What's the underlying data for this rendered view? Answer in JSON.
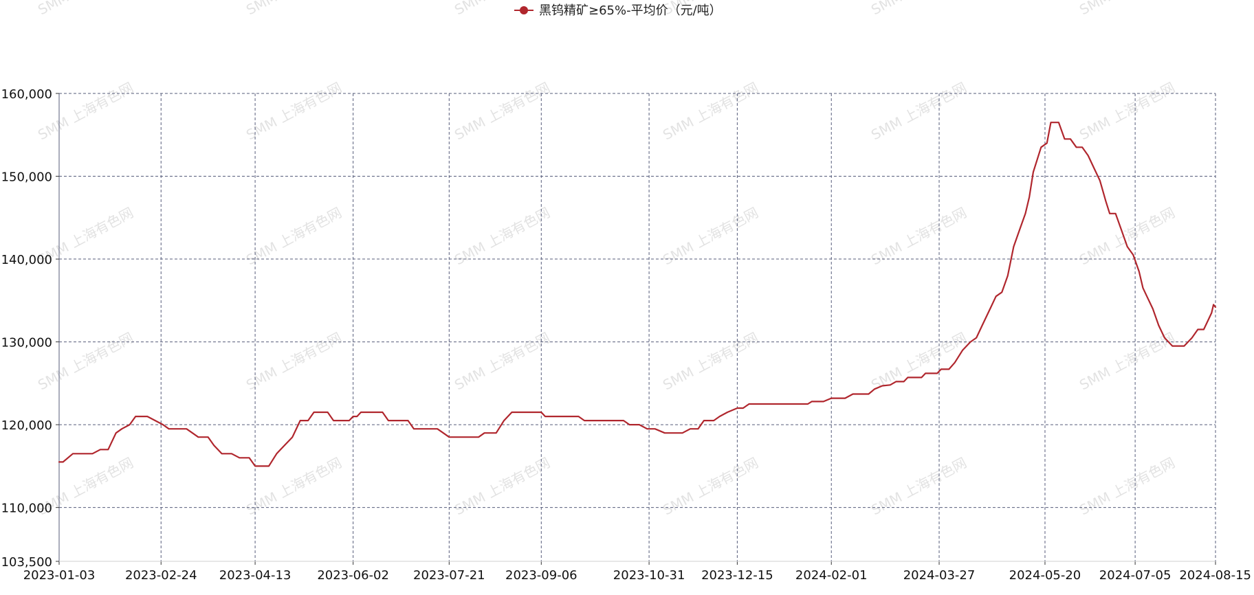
{
  "watermark": "SMM 上海有色网",
  "chart_data": {
    "type": "line",
    "legend": {
      "position": "top-center"
    },
    "series": [
      {
        "name": "黑钨精矿≥65%-平均价（元/吨）",
        "color": "#b0262d",
        "points": [
          [
            "2023-01-03",
            115500
          ],
          [
            "2023-01-05",
            115500
          ],
          [
            "2023-01-10",
            116500
          ],
          [
            "2023-01-20",
            116500
          ],
          [
            "2023-01-24",
            117000
          ],
          [
            "2023-01-28",
            117000
          ],
          [
            "2023-02-01",
            119000
          ],
          [
            "2023-02-04",
            119500
          ],
          [
            "2023-02-08",
            120000
          ],
          [
            "2023-02-11",
            121000
          ],
          [
            "2023-02-17",
            121000
          ],
          [
            "2023-02-21",
            120500
          ],
          [
            "2023-02-25",
            120000
          ],
          [
            "2023-02-28",
            119500
          ],
          [
            "2023-03-04",
            119500
          ],
          [
            "2023-03-09",
            119500
          ],
          [
            "2023-03-12",
            119000
          ],
          [
            "2023-03-15",
            118500
          ],
          [
            "2023-03-20",
            118500
          ],
          [
            "2023-03-23",
            117500
          ],
          [
            "2023-03-27",
            116500
          ],
          [
            "2023-04-01",
            116500
          ],
          [
            "2023-04-05",
            116000
          ],
          [
            "2023-04-10",
            116000
          ],
          [
            "2023-04-13",
            115000
          ],
          [
            "2023-04-20",
            115000
          ],
          [
            "2023-04-24",
            116500
          ],
          [
            "2023-04-28",
            117500
          ],
          [
            "2023-05-02",
            118500
          ],
          [
            "2023-05-06",
            120500
          ],
          [
            "2023-05-10",
            120500
          ],
          [
            "2023-05-13",
            121500
          ],
          [
            "2023-05-20",
            121500
          ],
          [
            "2023-05-23",
            120500
          ],
          [
            "2023-05-31",
            120500
          ],
          [
            "2023-06-02",
            121000
          ],
          [
            "2023-06-04",
            121000
          ],
          [
            "2023-06-06",
            121500
          ],
          [
            "2023-06-14",
            121500
          ],
          [
            "2023-06-17",
            121500
          ],
          [
            "2023-06-20",
            120500
          ],
          [
            "2023-06-30",
            120500
          ],
          [
            "2023-07-03",
            119500
          ],
          [
            "2023-07-15",
            119500
          ],
          [
            "2023-07-18",
            119000
          ],
          [
            "2023-07-21",
            118500
          ],
          [
            "2023-08-05",
            118500
          ],
          [
            "2023-08-08",
            119000
          ],
          [
            "2023-08-14",
            119000
          ],
          [
            "2023-08-18",
            120500
          ],
          [
            "2023-08-22",
            121500
          ],
          [
            "2023-09-06",
            121500
          ],
          [
            "2023-09-08",
            121000
          ],
          [
            "2023-09-25",
            121000
          ],
          [
            "2023-09-28",
            120500
          ],
          [
            "2023-10-18",
            120500
          ],
          [
            "2023-10-21",
            120000
          ],
          [
            "2023-10-26",
            120000
          ],
          [
            "2023-10-30",
            119500
          ],
          [
            "2023-11-03",
            119500
          ],
          [
            "2023-11-08",
            119000
          ],
          [
            "2023-11-17",
            119000
          ],
          [
            "2023-11-21",
            119500
          ],
          [
            "2023-11-25",
            119500
          ],
          [
            "2023-11-28",
            120500
          ],
          [
            "2023-12-03",
            120500
          ],
          [
            "2023-12-06",
            121000
          ],
          [
            "2023-12-10",
            121500
          ],
          [
            "2023-12-15",
            122000
          ],
          [
            "2023-12-18",
            122000
          ],
          [
            "2023-12-21",
            122500
          ],
          [
            "2024-01-15",
            122500
          ],
          [
            "2024-01-20",
            122500
          ],
          [
            "2024-01-22",
            122800
          ],
          [
            "2024-01-28",
            122800
          ],
          [
            "2024-02-01",
            123200
          ],
          [
            "2024-02-08",
            123200
          ],
          [
            "2024-02-12",
            123700
          ],
          [
            "2024-02-20",
            123700
          ],
          [
            "2024-02-23",
            124300
          ],
          [
            "2024-02-27",
            124700
          ],
          [
            "2024-03-02",
            124800
          ],
          [
            "2024-03-05",
            125200
          ],
          [
            "2024-03-09",
            125200
          ],
          [
            "2024-03-11",
            125700
          ],
          [
            "2024-03-18",
            125700
          ],
          [
            "2024-03-20",
            126200
          ],
          [
            "2024-03-26",
            126200
          ],
          [
            "2024-03-28",
            126700
          ],
          [
            "2024-04-01",
            126700
          ],
          [
            "2024-04-04",
            127500
          ],
          [
            "2024-04-08",
            129000
          ],
          [
            "2024-04-12",
            130000
          ],
          [
            "2024-04-15",
            130500
          ],
          [
            "2024-04-18",
            132000
          ],
          [
            "2024-04-22",
            134000
          ],
          [
            "2024-04-25",
            135500
          ],
          [
            "2024-04-28",
            136000
          ],
          [
            "2024-05-01",
            138000
          ],
          [
            "2024-05-04",
            141500
          ],
          [
            "2024-05-07",
            143500
          ],
          [
            "2024-05-10",
            145500
          ],
          [
            "2024-05-12",
            147500
          ],
          [
            "2024-05-14",
            150500
          ],
          [
            "2024-05-16",
            152000
          ],
          [
            "2024-05-18",
            153500
          ],
          [
            "2024-05-21",
            154000
          ],
          [
            "2024-05-23",
            156500
          ],
          [
            "2024-05-27",
            156500
          ],
          [
            "2024-05-30",
            154500
          ],
          [
            "2024-06-02",
            154500
          ],
          [
            "2024-06-05",
            153500
          ],
          [
            "2024-06-08",
            153500
          ],
          [
            "2024-06-11",
            152500
          ],
          [
            "2024-06-14",
            151000
          ],
          [
            "2024-06-17",
            149500
          ],
          [
            "2024-06-20",
            147000
          ],
          [
            "2024-06-22",
            145500
          ],
          [
            "2024-06-25",
            145500
          ],
          [
            "2024-06-28",
            143500
          ],
          [
            "2024-07-01",
            141500
          ],
          [
            "2024-07-04",
            140500
          ],
          [
            "2024-07-07",
            138500
          ],
          [
            "2024-07-09",
            136500
          ],
          [
            "2024-07-11",
            135500
          ],
          [
            "2024-07-14",
            134000
          ],
          [
            "2024-07-17",
            132000
          ],
          [
            "2024-07-20",
            130500
          ],
          [
            "2024-07-22",
            130000
          ],
          [
            "2024-07-24",
            129500
          ],
          [
            "2024-07-30",
            129500
          ],
          [
            "2024-08-03",
            130500
          ],
          [
            "2024-08-06",
            131500
          ],
          [
            "2024-08-09",
            131500
          ],
          [
            "2024-08-11",
            132500
          ],
          [
            "2024-08-13",
            133500
          ],
          [
            "2024-08-14",
            134500
          ],
          [
            "2024-08-15",
            134200
          ]
        ]
      }
    ],
    "x_ticks": [
      "2023-01-03",
      "2023-02-24",
      "2023-04-13",
      "2023-06-02",
      "2023-07-21",
      "2023-09-06",
      "2023-10-31",
      "2023-12-15",
      "2024-02-01",
      "2024-03-27",
      "2024-05-20",
      "2024-07-05",
      "2024-08-15"
    ],
    "y_ticks": [
      "103,500",
      "110,000",
      "120,000",
      "130,000",
      "140,000",
      "150,000",
      "160,000"
    ],
    "x_range": [
      "2023-01-03",
      "2024-08-15"
    ],
    "y_range": [
      103500,
      160000
    ],
    "grid": true
  }
}
